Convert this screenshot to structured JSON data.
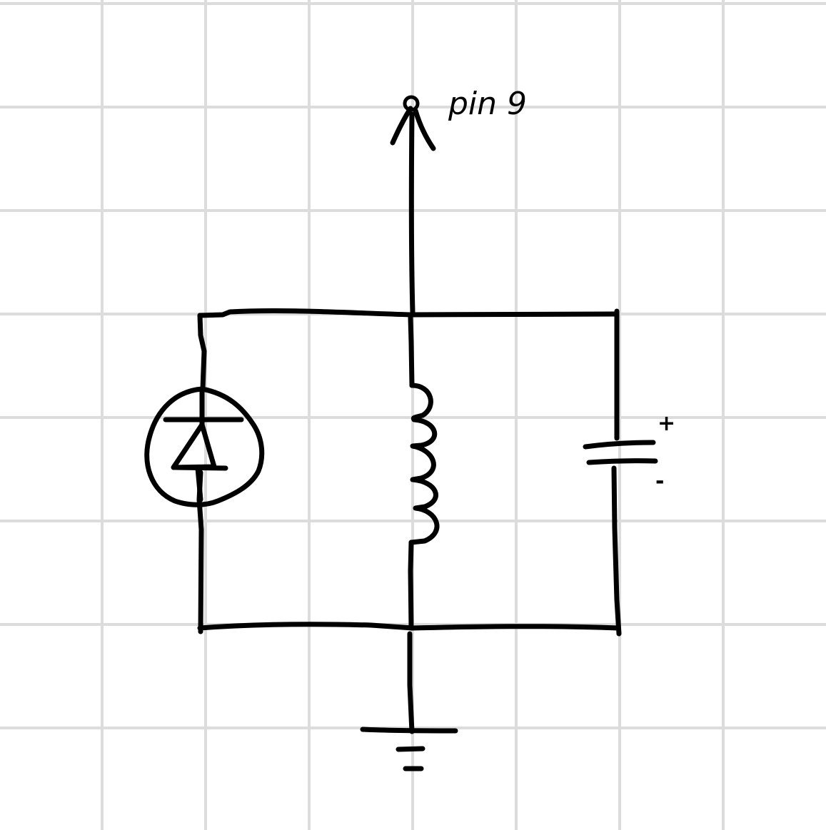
{
  "diagram": {
    "kind": "hand-drawn circuit schematic on grid paper",
    "background": "grid-paper",
    "colors": {
      "ink": "#000000",
      "grid": "#dcdcdc",
      "paper": "#ffffff"
    },
    "output_pin": {
      "label": "pin 9"
    },
    "battery": {
      "positive_label": "+",
      "negative_label": "-"
    },
    "components": [
      {
        "name": "photodiode",
        "icon": "photodiode-symbol"
      },
      {
        "name": "inductor",
        "icon": "inductor-coil-symbol"
      },
      {
        "name": "battery",
        "icon": "battery-symbol"
      },
      {
        "name": "ground",
        "icon": "ground-symbol"
      }
    ]
  }
}
